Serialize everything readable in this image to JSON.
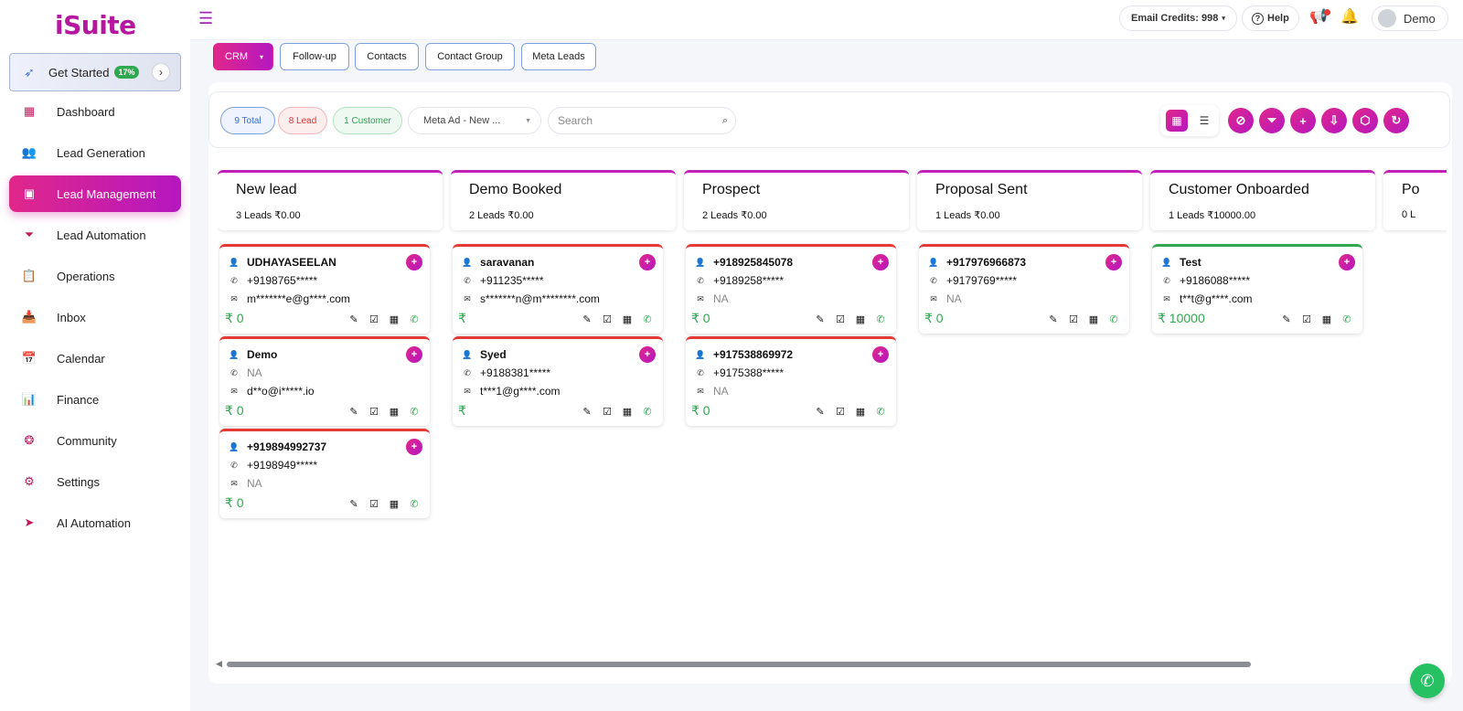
{
  "brand": {
    "logo_text": "iSuite"
  },
  "sidebar": {
    "get_started": {
      "label": "Get Started",
      "badge": "17%"
    },
    "items": [
      {
        "label": "Dashboard",
        "icon": "grid-icon"
      },
      {
        "label": "Lead Generation",
        "icon": "users-icon"
      },
      {
        "label": "Lead Management",
        "icon": "id-card-icon",
        "active": true
      },
      {
        "label": "Lead Automation",
        "icon": "funnel-icon"
      },
      {
        "label": "Operations",
        "icon": "clipboard-icon"
      },
      {
        "label": "Inbox",
        "icon": "inbox-icon"
      },
      {
        "label": "Calendar",
        "icon": "calendar-icon"
      },
      {
        "label": "Finance",
        "icon": "chart-icon"
      },
      {
        "label": "Community",
        "icon": "community-icon"
      },
      {
        "label": "Settings",
        "icon": "gear-icon"
      },
      {
        "label": "AI Automation",
        "icon": "send-icon"
      }
    ]
  },
  "header": {
    "email_credits": "Email Credits: 998",
    "help": "Help",
    "user": "Demo"
  },
  "tabs": [
    "CRM",
    "Follow-up",
    "Contacts",
    "Contact Group",
    "Meta Leads"
  ],
  "toolbar": {
    "total": "9 Total",
    "lead": "8 Lead",
    "customer": "1 Customer",
    "source_select": "Meta Ad - New ...",
    "search_placeholder": "Search"
  },
  "columns": [
    {
      "title": "New lead",
      "summary": "3 Leads ₹0.00",
      "cards": [
        {
          "name": "UDHAYASEELAN",
          "phone": "+9198765*****",
          "email": "m*******e@g****.com",
          "amount": "₹ 0",
          "color": "red"
        },
        {
          "name": "Demo",
          "phone": "NA",
          "email": "d**o@i*****.io",
          "amount": "₹ 0",
          "color": "red"
        },
        {
          "name": "+919894992737",
          "phone": "+9198949*****",
          "email": "NA",
          "amount": "₹ 0",
          "color": "red"
        }
      ]
    },
    {
      "title": "Demo Booked",
      "summary": "2 Leads ₹0.00",
      "cards": [
        {
          "name": "saravanan",
          "phone": "+911235*****",
          "email": "s*******n@m********.com",
          "amount": "₹",
          "color": "red"
        },
        {
          "name": "Syed",
          "phone": "+9188381*****",
          "email": "t***1@g****.com",
          "amount": "₹",
          "color": "red"
        }
      ]
    },
    {
      "title": "Prospect",
      "summary": "2 Leads ₹0.00",
      "cards": [
        {
          "name": "+918925845078",
          "phone": "+9189258*****",
          "email": "NA",
          "amount": "₹ 0",
          "color": "red"
        },
        {
          "name": "+917538869972",
          "phone": "+9175388*****",
          "email": "NA",
          "amount": "₹ 0",
          "color": "red"
        }
      ]
    },
    {
      "title": "Proposal Sent",
      "summary": "1 Leads ₹0.00",
      "cards": [
        {
          "name": "+917976966873",
          "phone": "+9179769*****",
          "email": "NA",
          "amount": "₹ 0",
          "color": "red"
        }
      ]
    },
    {
      "title": "Customer Onboarded",
      "summary": "1 Leads ₹10000.00",
      "cards": [
        {
          "name": "Test",
          "phone": "+9186088*****",
          "email": "t**t@g****.com",
          "amount": "₹ 10000",
          "color": "green"
        }
      ]
    },
    {
      "title": "Po",
      "summary": "0 L",
      "cards": []
    }
  ],
  "colors": {
    "accent": "#c021b8",
    "accent_start": "#e0278a",
    "success": "#2fa84f",
    "danger": "#e53935"
  }
}
